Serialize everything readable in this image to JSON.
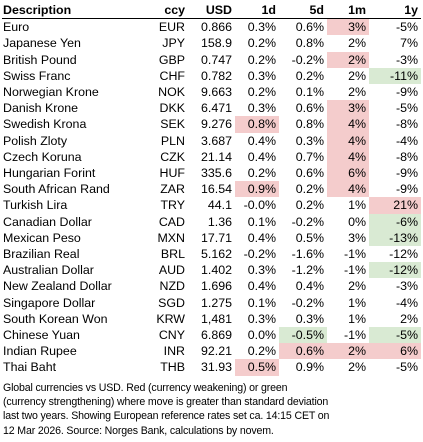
{
  "chart_data": {
    "type": "table",
    "columns": [
      "Description",
      "ccy",
      "USD",
      "1d",
      "5d",
      "1m",
      "1y"
    ],
    "rows": [
      {
        "name": "Euro",
        "ccy": "EUR",
        "usd": "0.866",
        "d1": "0.3%",
        "d5": "0.6%",
        "m1": "3%",
        "y1": "-5%",
        "hl": {
          "m1": "red"
        }
      },
      {
        "name": "Japanese Yen",
        "ccy": "JPY",
        "usd": "158.9",
        "d1": "0.2%",
        "d5": "0.8%",
        "m1": "2%",
        "y1": "7%",
        "hl": {}
      },
      {
        "name": "British Pound",
        "ccy": "GBP",
        "usd": "0.747",
        "d1": "0.2%",
        "d5": "-0.2%",
        "m1": "2%",
        "y1": "-3%",
        "hl": {
          "m1": "red"
        }
      },
      {
        "name": "Swiss Franc",
        "ccy": "CHF",
        "usd": "0.782",
        "d1": "0.3%",
        "d5": "0.2%",
        "m1": "2%",
        "y1": "-11%",
        "hl": {
          "y1": "green"
        }
      },
      {
        "name": "Norwegian Krone",
        "ccy": "NOK",
        "usd": "9.663",
        "d1": "0.2%",
        "d5": "0.1%",
        "m1": "2%",
        "y1": "-9%",
        "hl": {}
      },
      {
        "name": "Danish Krone",
        "ccy": "DKK",
        "usd": "6.471",
        "d1": "0.3%",
        "d5": "0.6%",
        "m1": "3%",
        "y1": "-5%",
        "hl": {
          "m1": "red"
        }
      },
      {
        "name": "Swedish Krona",
        "ccy": "SEK",
        "usd": "9.276",
        "d1": "0.8%",
        "d5": "0.8%",
        "m1": "4%",
        "y1": "-8%",
        "hl": {
          "d1": "red",
          "m1": "red"
        }
      },
      {
        "name": "Polish Zloty",
        "ccy": "PLN",
        "usd": "3.687",
        "d1": "0.4%",
        "d5": "0.3%",
        "m1": "4%",
        "y1": "-4%",
        "hl": {
          "m1": "red"
        }
      },
      {
        "name": "Czech Koruna",
        "ccy": "CZK",
        "usd": "21.14",
        "d1": "0.4%",
        "d5": "0.7%",
        "m1": "4%",
        "y1": "-8%",
        "hl": {
          "m1": "red"
        }
      },
      {
        "name": "Hungarian Forint",
        "ccy": "HUF",
        "usd": "335.6",
        "d1": "0.2%",
        "d5": "0.6%",
        "m1": "6%",
        "y1": "-9%",
        "hl": {
          "m1": "red"
        }
      },
      {
        "name": "South African Rand",
        "ccy": "ZAR",
        "usd": "16.54",
        "d1": "0.9%",
        "d5": "0.2%",
        "m1": "4%",
        "y1": "-9%",
        "hl": {
          "d1": "red",
          "m1": "red"
        }
      },
      {
        "name": "Turkish Lira",
        "ccy": "TRY",
        "usd": "44.1",
        "d1": "-0.0%",
        "d5": "0.2%",
        "m1": "1%",
        "y1": "21%",
        "hl": {
          "y1": "red"
        }
      },
      {
        "name": "Canadian Dollar",
        "ccy": "CAD",
        "usd": "1.36",
        "d1": "0.1%",
        "d5": "-0.2%",
        "m1": "0%",
        "y1": "-6%",
        "hl": {
          "y1": "green"
        }
      },
      {
        "name": "Mexican Peso",
        "ccy": "MXN",
        "usd": "17.71",
        "d1": "0.4%",
        "d5": "0.5%",
        "m1": "3%",
        "y1": "-13%",
        "hl": {
          "y1": "green"
        }
      },
      {
        "name": "Brazilian Real",
        "ccy": "BRL",
        "usd": "5.162",
        "d1": "-0.2%",
        "d5": "-1.6%",
        "m1": "-1%",
        "y1": "-12%",
        "hl": {}
      },
      {
        "name": "Australian Dollar",
        "ccy": "AUD",
        "usd": "1.402",
        "d1": "0.3%",
        "d5": "-1.2%",
        "m1": "-1%",
        "y1": "-12%",
        "hl": {
          "y1": "green"
        }
      },
      {
        "name": "New Zealand Dollar",
        "ccy": "NZD",
        "usd": "1.696",
        "d1": "0.4%",
        "d5": "0.4%",
        "m1": "2%",
        "y1": "-3%",
        "hl": {}
      },
      {
        "name": "Singapore Dollar",
        "ccy": "SGD",
        "usd": "1.275",
        "d1": "0.1%",
        "d5": "-0.2%",
        "m1": "1%",
        "y1": "-4%",
        "hl": {}
      },
      {
        "name": "South Korean Won",
        "ccy": "KRW",
        "usd": "1,481",
        "d1": "0.3%",
        "d5": "0.3%",
        "m1": "1%",
        "y1": "2%",
        "hl": {}
      },
      {
        "name": "Chinese Yuan",
        "ccy": "CNY",
        "usd": "6.869",
        "d1": "0.0%",
        "d5": "-0.5%",
        "m1": "-1%",
        "y1": "-5%",
        "hl": {
          "d5": "green",
          "y1": "green"
        }
      },
      {
        "name": "Indian Rupee",
        "ccy": "INR",
        "usd": "92.21",
        "d1": "0.2%",
        "d5": "0.6%",
        "m1": "2%",
        "y1": "6%",
        "hl": {
          "d5": "red",
          "m1": "red",
          "y1": "red"
        }
      },
      {
        "name": "Thai Baht",
        "ccy": "THB",
        "usd": "31.93",
        "d1": "0.5%",
        "d5": "0.9%",
        "m1": "2%",
        "y1": "-5%",
        "hl": {
          "d1": "red"
        }
      }
    ],
    "highlight_colors": {
      "red": "#f4cccc",
      "green": "#d9ead3"
    }
  },
  "footnote": {
    "lines": [
      "Global currencies vs USD. Red (currency weakening) or green",
      "(currency strengthening) where move is greater than standard deviation",
      "last two years. Showing European reference rates set ca. 14:15 CET on",
      "12 Mar 2026. Source: Norges Bank, calculations by novem."
    ]
  }
}
